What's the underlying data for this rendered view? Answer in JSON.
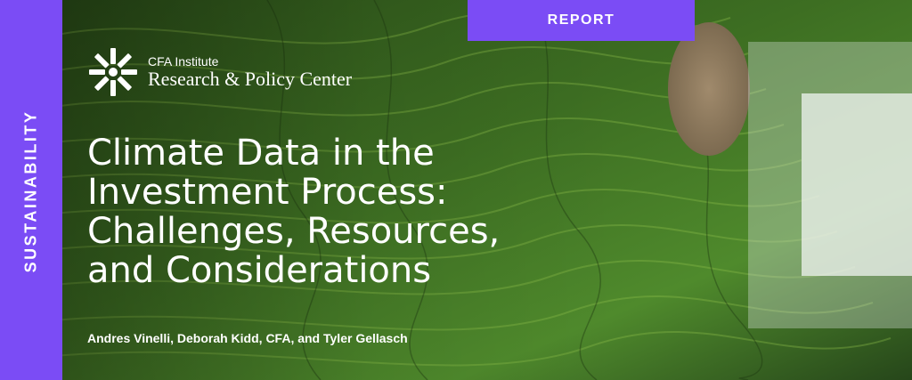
{
  "report_tag": "REPORT",
  "sidebar_label": "SUSTAINABILITY",
  "logo": {
    "line1": "CFA Institute",
    "line2": "Research & Policy Center",
    "icon": "cfa-sunburst-icon"
  },
  "title_lines": [
    "Climate Data in the",
    "Investment Process:",
    "Challenges, Resources,",
    "and Considerations"
  ],
  "authors": "Andres Vinelli, Deborah Kidd, CFA, and Tyler Gellasch",
  "colors": {
    "accent_purple": "#7b4cf5",
    "text": "#ffffff",
    "terrace_green": "#2f5a1f"
  }
}
